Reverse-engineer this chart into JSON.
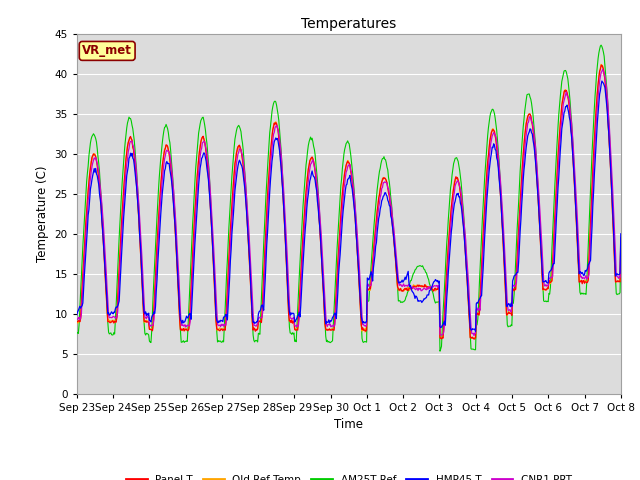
{
  "title": "Temperatures",
  "xlabel": "Time",
  "ylabel": "Temperature (C)",
  "ylim": [
    0,
    45
  ],
  "yticks": [
    0,
    5,
    10,
    15,
    20,
    25,
    30,
    35,
    40,
    45
  ],
  "annotation_text": "VR_met",
  "legend": [
    {
      "label": "Panel T",
      "color": "#FF0000"
    },
    {
      "label": "Old Ref Temp",
      "color": "#FFA500"
    },
    {
      "label": "AM25T Ref",
      "color": "#00CC00"
    },
    {
      "label": "HMP45 T",
      "color": "#0000FF"
    },
    {
      "label": "CNR1 PRT",
      "color": "#CC00CC"
    }
  ],
  "background_color": "#DCDCDC",
  "fig_background": "#FFFFFF",
  "grid_color": "#FFFFFF",
  "day_maxes": [
    30,
    32,
    31,
    32,
    31,
    34,
    29.5,
    29,
    27,
    13.5,
    27,
    33,
    35,
    38,
    41,
    39
  ],
  "day_mins": [
    9,
    9,
    8,
    8,
    8,
    9,
    8,
    8,
    13,
    13,
    7,
    10,
    13,
    14,
    14,
    19
  ],
  "tick_labels": [
    "Sep 23",
    "Sep 24",
    "Sep 25",
    "Sep 26",
    "Sep 27",
    "Sep 28",
    "Sep 29",
    "Sep 30",
    "Oct 1",
    "Oct 2",
    "Oct 3",
    "Oct 4",
    "Oct 5",
    "Oct 6",
    "Oct 7",
    "Oct 8"
  ]
}
